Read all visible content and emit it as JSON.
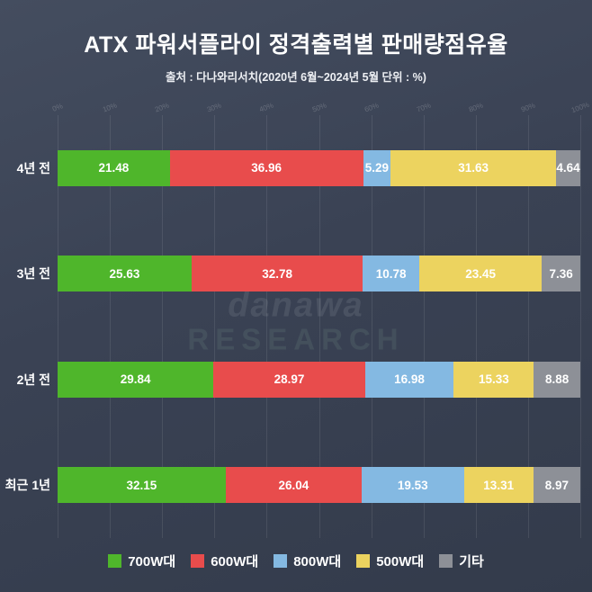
{
  "title": "ATX 파워서플라이 정격출력별 판매량점유율",
  "subtitle": "출처 : 다나와리서치(2020년 6월~2024년 5월 단위 : %)",
  "watermark": {
    "line1": "danawa",
    "line2": "RESEARCH"
  },
  "chart_data": {
    "type": "bar",
    "orientation": "horizontal-stacked",
    "title": "ATX 파워서플라이 정격출력별 판매량점유율",
    "subtitle": "출처 : 다나와리서치(2020년 6월~2024년 5월 단위 : %)",
    "unit": "%",
    "xlim": [
      0,
      100
    ],
    "axis_ticks": [
      "0%",
      "10%",
      "20%",
      "30%",
      "40%",
      "50%",
      "60%",
      "70%",
      "80%",
      "90%",
      "100%"
    ],
    "grid": true,
    "legend_position": "bottom",
    "categories": [
      "4년 전",
      "3년 전",
      "2년 전",
      "최근 1년"
    ],
    "series": [
      {
        "name": "700W대",
        "color": "#4fb62b",
        "values": [
          21.48,
          25.63,
          29.84,
          32.15
        ]
      },
      {
        "name": "600W대",
        "color": "#e84c4c",
        "values": [
          36.96,
          32.78,
          28.97,
          26.04
        ]
      },
      {
        "name": "800W대",
        "color": "#84b9e2",
        "values": [
          5.29,
          10.78,
          16.98,
          19.53
        ]
      },
      {
        "name": "500W대",
        "color": "#ecd35f",
        "values": [
          31.63,
          23.45,
          15.33,
          13.31
        ]
      },
      {
        "name": "기타",
        "color": "#8d9097",
        "values": [
          4.64,
          7.36,
          8.88,
          8.97
        ]
      }
    ]
  }
}
